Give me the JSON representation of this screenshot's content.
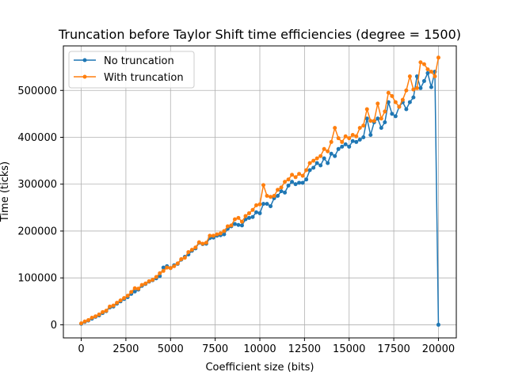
{
  "chart_data": {
    "type": "line",
    "title": "Truncation before Taylor Shift time efficiencies (degree = 1500)",
    "xlabel": "Coefficient size (bits)",
    "ylabel": "Time (ticks)",
    "xlim": [
      -1000,
      21000
    ],
    "ylim": [
      -28000,
      595000
    ],
    "xticks": [
      0,
      2500,
      5000,
      7500,
      10000,
      12500,
      15000,
      17500,
      20000
    ],
    "xtick_labels": [
      "0",
      "2500",
      "5000",
      "7500",
      "10000",
      "12500",
      "15000",
      "17500",
      "20000"
    ],
    "yticks": [
      0,
      100000,
      200000,
      300000,
      400000,
      500000
    ],
    "ytick_labels": [
      "0",
      "100000",
      "200000",
      "300000",
      "400000",
      "500000"
    ],
    "grid": true,
    "legend_position": "upper left",
    "series": [
      {
        "name": "No truncation",
        "color": "#1f77b4",
        "marker": "circle",
        "x": [
          0,
          200,
          400,
          600,
          800,
          1000,
          1200,
          1400,
          1600,
          1800,
          2000,
          2200,
          2400,
          2600,
          2800,
          3000,
          3200,
          3400,
          3600,
          3800,
          4000,
          4200,
          4400,
          4600,
          4800,
          5000,
          5200,
          5400,
          5600,
          5800,
          6000,
          6200,
          6400,
          6600,
          6800,
          7000,
          7200,
          7400,
          7600,
          7800,
          8000,
          8200,
          8400,
          8600,
          8800,
          9000,
          9200,
          9400,
          9600,
          9800,
          10000,
          10200,
          10400,
          10600,
          10800,
          11000,
          11200,
          11400,
          11600,
          11800,
          12000,
          12200,
          12400,
          12600,
          12800,
          13000,
          13200,
          13400,
          13600,
          13800,
          14000,
          14200,
          14400,
          14600,
          14800,
          15000,
          15200,
          15400,
          15600,
          15800,
          16000,
          16200,
          16400,
          16600,
          16800,
          17000,
          17200,
          17400,
          17600,
          17800,
          18000,
          18200,
          18400,
          18600,
          18800,
          19000,
          19200,
          19400,
          19600,
          19800,
          20000
        ],
        "values": [
          2000,
          6000,
          9000,
          13000,
          17000,
          20000,
          25000,
          29000,
          37000,
          39000,
          45000,
          50000,
          55000,
          59000,
          66000,
          71000,
          75000,
          83000,
          87000,
          92000,
          95000,
          99000,
          104000,
          122000,
          125000,
          121000,
          127000,
          130000,
          139000,
          145000,
          150000,
          158000,
          163000,
          175000,
          172000,
          173000,
          185000,
          186000,
          190000,
          191000,
          193000,
          205000,
          210000,
          215000,
          213000,
          212000,
          225000,
          228000,
          230000,
          240000,
          238000,
          258000,
          258000,
          253000,
          270000,
          275000,
          285000,
          282000,
          297000,
          305000,
          300000,
          303000,
          303000,
          310000,
          330000,
          335000,
          345000,
          340000,
          355000,
          345000,
          365000,
          360000,
          375000,
          380000,
          385000,
          380000,
          392000,
          390000,
          395000,
          400000,
          440000,
          405000,
          432000,
          440000,
          420000,
          432000,
          475000,
          450000,
          445000,
          465000,
          475000,
          460000,
          475000,
          485000,
          530000,
          505000,
          520000,
          537000,
          507000,
          540000,
          0
        ]
      },
      {
        "name": "With truncation",
        "color": "#ff7f0e",
        "marker": "circle",
        "x": [
          0,
          200,
          400,
          600,
          800,
          1000,
          1200,
          1400,
          1600,
          1800,
          2000,
          2200,
          2400,
          2600,
          2800,
          3000,
          3200,
          3400,
          3600,
          3800,
          4000,
          4200,
          4400,
          4600,
          4800,
          5000,
          5200,
          5400,
          5600,
          5800,
          6000,
          6200,
          6400,
          6600,
          6800,
          7000,
          7200,
          7400,
          7600,
          7800,
          8000,
          8200,
          8400,
          8600,
          8800,
          9000,
          9200,
          9400,
          9600,
          9800,
          10000,
          10200,
          10400,
          10600,
          10800,
          11000,
          11200,
          11400,
          11600,
          11800,
          12000,
          12200,
          12400,
          12600,
          12800,
          13000,
          13200,
          13400,
          13600,
          13800,
          14000,
          14200,
          14400,
          14600,
          14800,
          15000,
          15200,
          15400,
          15600,
          15800,
          16000,
          16200,
          16400,
          16600,
          16800,
          17000,
          17200,
          17400,
          17600,
          17800,
          18000,
          18200,
          18400,
          18600,
          18800,
          19000,
          19200,
          19400,
          19600,
          19800,
          20000
        ],
        "values": [
          3000,
          7000,
          10000,
          15000,
          18000,
          22000,
          27000,
          30000,
          39000,
          41000,
          47000,
          52000,
          57000,
          62000,
          70000,
          78000,
          77000,
          85000,
          88000,
          93000,
          96000,
          102000,
          110000,
          115000,
          122000,
          121000,
          125000,
          131000,
          140000,
          143000,
          155000,
          160000,
          165000,
          176000,
          173000,
          175000,
          190000,
          190000,
          193000,
          195000,
          200000,
          210000,
          212000,
          225000,
          228000,
          220000,
          232000,
          238000,
          245000,
          255000,
          257000,
          298000,
          275000,
          273000,
          275000,
          288000,
          293000,
          305000,
          310000,
          320000,
          315000,
          322000,
          318000,
          330000,
          345000,
          350000,
          355000,
          360000,
          375000,
          370000,
          390000,
          420000,
          398000,
          390000,
          402000,
          398000,
          405000,
          402000,
          420000,
          425000,
          460000,
          435000,
          435000,
          472000,
          440000,
          455000,
          495000,
          488000,
          475000,
          465000,
          480000,
          500000,
          530000,
          502000,
          505000,
          560000,
          556000,
          545000,
          540000,
          530000,
          570000
        ]
      }
    ]
  }
}
